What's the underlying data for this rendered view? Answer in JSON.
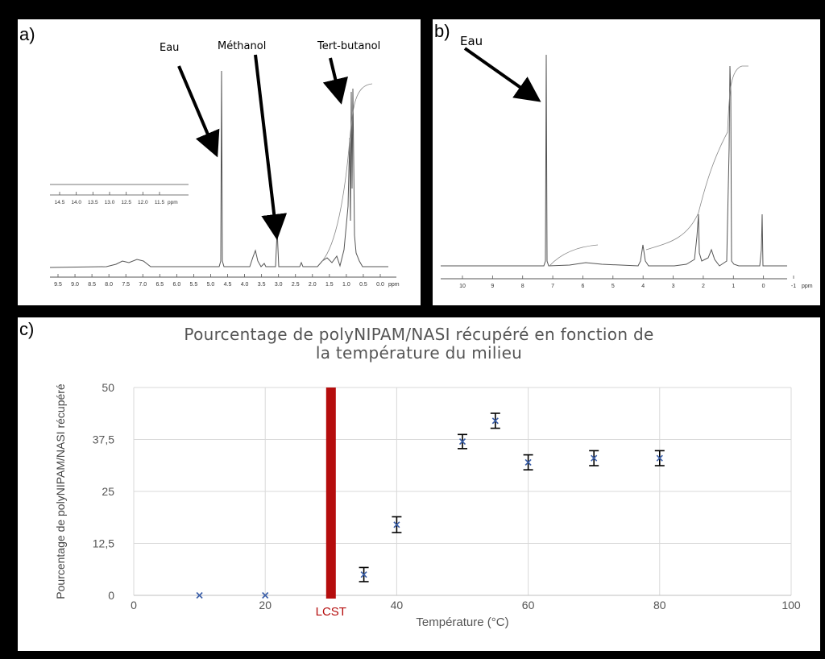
{
  "panel_a": {
    "label": "a)",
    "annotations": [
      "Eau",
      "Méthanol",
      "Tert-butanol"
    ],
    "axis_ticks": [
      "9.5",
      "9.0",
      "8.5",
      "8.0",
      "7.5",
      "7.0",
      "6.5",
      "6.0",
      "5.5",
      "5.0",
      "4.5",
      "4.0",
      "3.5",
      "3.0",
      "2.5",
      "2.0",
      "1.5",
      "1.0",
      "0.5",
      "0.0"
    ],
    "axis_unit": "ppm",
    "inset_ticks": [
      "14.5",
      "14.0",
      "13.5",
      "13.0",
      "12.5",
      "12.0",
      "11.5"
    ],
    "inset_unit": "ppm"
  },
  "panel_b": {
    "label": "b)",
    "annotations": [
      "Eau"
    ],
    "axis_ticks": [
      "10",
      "9",
      "8",
      "7",
      "6",
      "5",
      "4",
      "3",
      "2",
      "1",
      "0",
      "-1"
    ],
    "axis_unit": "ppm"
  },
  "panel_c": {
    "label": "c)",
    "colors": {
      "marker": "#3b5fa8",
      "lcst": "#b50d0d",
      "grid": "#d9d9d9",
      "error_bar": "#000000"
    }
  },
  "chart_data": {
    "type": "scatter",
    "title_lines": [
      "Pourcentage de polyNIPAM/NASI récupéré en fonction de",
      "la température du milieu"
    ],
    "xlabel": "Température (°C)",
    "ylabel": "Pourcentage de polyNIPAM/NASI récupéré",
    "xlim": [
      0,
      100
    ],
    "ylim": [
      0,
      50
    ],
    "x_ticks": [
      "0",
      "20",
      "40",
      "60",
      "80",
      "100"
    ],
    "y_ticks": [
      "0",
      "12,5",
      "25",
      "37,5",
      "50"
    ],
    "grid": true,
    "marker": "x",
    "points": [
      {
        "x": 10,
        "y": 0,
        "err": 0
      },
      {
        "x": 20,
        "y": 0,
        "err": 0
      },
      {
        "x": 35,
        "y": 5,
        "err": 1.7
      },
      {
        "x": 40,
        "y": 17,
        "err": 1.9
      },
      {
        "x": 50,
        "y": 37,
        "err": 1.7
      },
      {
        "x": 55,
        "y": 42,
        "err": 1.8
      },
      {
        "x": 60,
        "y": 32,
        "err": 1.8
      },
      {
        "x": 70,
        "y": 33,
        "err": 1.8
      },
      {
        "x": 80,
        "y": 33,
        "err": 1.8
      }
    ],
    "reference_line": {
      "x": 30,
      "label": "LCST"
    }
  }
}
